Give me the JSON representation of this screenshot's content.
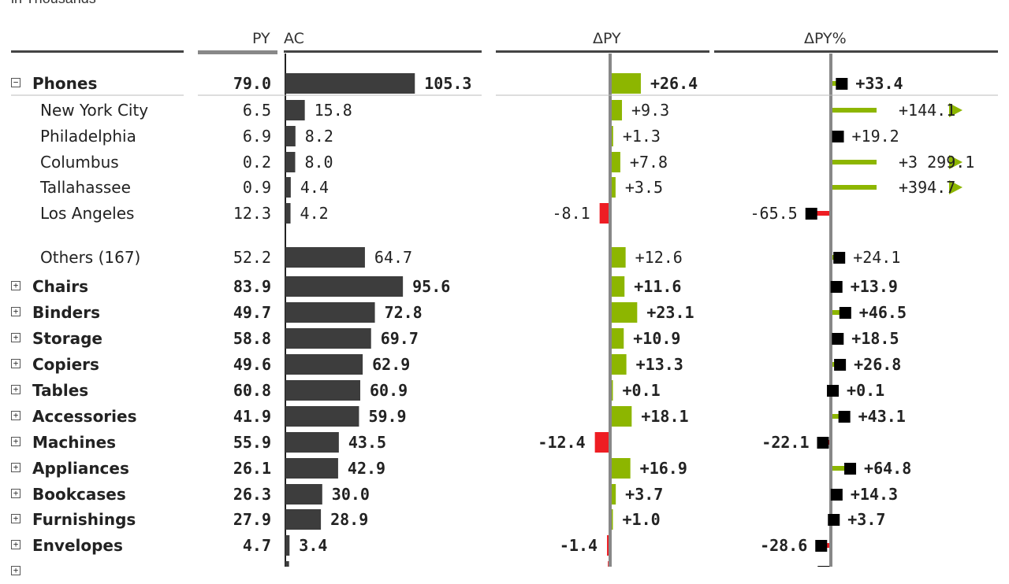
{
  "page": {
    "unit_label": "in Thousands"
  },
  "headers": {
    "py": "PY",
    "ac": "AC",
    "dpy": "ΔPY",
    "dpypct": "ΔPY%"
  },
  "colors": {
    "bar": "#3d3d3d",
    "positive": "#8db600",
    "negative": "#ee1d23",
    "marker": "#000000",
    "axis": "#888888",
    "rule": "#444444",
    "py_marker": "#888888"
  },
  "chart_data": {
    "type": "table",
    "columns": [
      "PY",
      "AC",
      "ΔPY",
      "ΔPY%"
    ],
    "rows": [
      {
        "label": "Phones",
        "toggle": "−",
        "bold": true,
        "py": "79.0",
        "ac": "105.3",
        "ac_value": 105.3,
        "dpy": "+26.4",
        "dpy_value": 26.4,
        "pct": "+33.4",
        "pct_value": 33.4,
        "pct_capped": false
      },
      {
        "label": "New York City",
        "indent": true,
        "py": "6.5",
        "ac": "15.8",
        "ac_value": 15.8,
        "dpy": "+9.3",
        "dpy_value": 9.3,
        "pct": "+144.1",
        "pct_value": 144.1,
        "pct_capped": true
      },
      {
        "label": "Philadelphia",
        "indent": true,
        "py": "6.9",
        "ac": "8.2",
        "ac_value": 8.2,
        "dpy": "+1.3",
        "dpy_value": 1.3,
        "pct": "+19.2",
        "pct_value": 19.2,
        "pct_capped": false
      },
      {
        "label": "Columbus",
        "indent": true,
        "py": "0.2",
        "ac": "8.0",
        "ac_value": 8.0,
        "dpy": "+7.8",
        "dpy_value": 7.8,
        "pct": "+3 299.1",
        "pct_value": 3299.1,
        "pct_capped": true
      },
      {
        "label": "Tallahassee",
        "indent": true,
        "py": "0.9",
        "ac": "4.4",
        "ac_value": 4.4,
        "dpy": "+3.5",
        "dpy_value": 3.5,
        "pct": "+394.7",
        "pct_value": 394.7,
        "pct_capped": true
      },
      {
        "label": "Los Angeles",
        "indent": true,
        "py": "12.3",
        "ac": "4.2",
        "ac_value": 4.2,
        "dpy": "-8.1",
        "dpy_value": -8.1,
        "pct": "-65.5",
        "pct_value": -65.5,
        "pct_capped": false
      },
      {
        "label": "Others (167)",
        "indent": true,
        "gap": true,
        "py": "52.2",
        "ac": "64.7",
        "ac_value": 64.7,
        "dpy": "+12.6",
        "dpy_value": 12.6,
        "pct": "+24.1",
        "pct_value": 24.1,
        "pct_capped": false
      },
      {
        "label": "Chairs",
        "toggle": "+",
        "bold": true,
        "py": "83.9",
        "ac": "95.6",
        "ac_value": 95.6,
        "dpy": "+11.6",
        "dpy_value": 11.6,
        "pct": "+13.9",
        "pct_value": 13.9,
        "pct_capped": false
      },
      {
        "label": "Binders",
        "toggle": "+",
        "bold": true,
        "py": "49.7",
        "ac": "72.8",
        "ac_value": 72.8,
        "dpy": "+23.1",
        "dpy_value": 23.1,
        "pct": "+46.5",
        "pct_value": 46.5,
        "pct_capped": false
      },
      {
        "label": "Storage",
        "toggle": "+",
        "bold": true,
        "py": "58.8",
        "ac": "69.7",
        "ac_value": 69.7,
        "dpy": "+10.9",
        "dpy_value": 10.9,
        "pct": "+18.5",
        "pct_value": 18.5,
        "pct_capped": false
      },
      {
        "label": "Copiers",
        "toggle": "+",
        "bold": true,
        "py": "49.6",
        "ac": "62.9",
        "ac_value": 62.9,
        "dpy": "+13.3",
        "dpy_value": 13.3,
        "pct": "+26.8",
        "pct_value": 26.8,
        "pct_capped": false
      },
      {
        "label": "Tables",
        "toggle": "+",
        "bold": true,
        "py": "60.8",
        "ac": "60.9",
        "ac_value": 60.9,
        "dpy": "+0.1",
        "dpy_value": 0.1,
        "pct": "+0.1",
        "pct_value": 0.1,
        "pct_capped": false
      },
      {
        "label": "Accessories",
        "toggle": "+",
        "bold": true,
        "py": "41.9",
        "ac": "59.9",
        "ac_value": 59.9,
        "dpy": "+18.1",
        "dpy_value": 18.1,
        "pct": "+43.1",
        "pct_value": 43.1,
        "pct_capped": false
      },
      {
        "label": "Machines",
        "toggle": "+",
        "bold": true,
        "py": "55.9",
        "ac": "43.5",
        "ac_value": 43.5,
        "dpy": "-12.4",
        "dpy_value": -12.4,
        "pct": "-22.1",
        "pct_value": -22.1,
        "pct_capped": false
      },
      {
        "label": "Appliances",
        "toggle": "+",
        "bold": true,
        "py": "26.1",
        "ac": "42.9",
        "ac_value": 42.9,
        "dpy": "+16.9",
        "dpy_value": 16.9,
        "pct": "+64.8",
        "pct_value": 64.8,
        "pct_capped": false
      },
      {
        "label": "Bookcases",
        "toggle": "+",
        "bold": true,
        "py": "26.3",
        "ac": "30.0",
        "ac_value": 30.0,
        "dpy": "+3.7",
        "dpy_value": 3.7,
        "pct": "+14.3",
        "pct_value": 14.3,
        "pct_capped": false
      },
      {
        "label": "Furnishings",
        "toggle": "+",
        "bold": true,
        "py": "27.9",
        "ac": "28.9",
        "ac_value": 28.9,
        "dpy": "+1.0",
        "dpy_value": 1.0,
        "pct": "+3.7",
        "pct_value": 3.7,
        "pct_capped": false
      },
      {
        "label": "Envelopes",
        "toggle": "+",
        "bold": true,
        "py": "4.7",
        "ac": "3.4",
        "ac_value": 3.4,
        "dpy": "-1.4",
        "dpy_value": -1.4,
        "pct": "-28.6",
        "pct_value": -28.6,
        "pct_capped": false
      },
      {
        "label": "",
        "toggle": "+",
        "bold": true,
        "py": "",
        "ac": "",
        "ac_value": 3.0,
        "dpy": "",
        "dpy_value": -0.6,
        "pct": "",
        "pct_value": -19.7,
        "pct_capped": false
      }
    ]
  }
}
